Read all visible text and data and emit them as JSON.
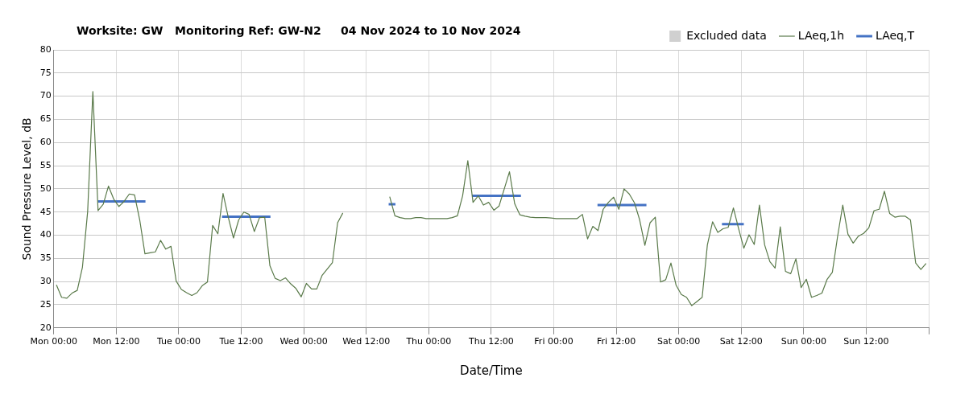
{
  "chart_data": {
    "type": "line",
    "title": "Worksite: GW   Monitoring Ref: GW-N2     04 Nov 2024 to 10 Nov 2024",
    "xlabel": "Date/Time",
    "ylabel": "Sound Pressure Level, dB",
    "xlim": [
      "2024-11-04T00:00",
      "2024-11-11T00:00"
    ],
    "xticks": [
      {
        "value": "2024-11-04T00:00",
        "label": "Mon 00:00"
      },
      {
        "value": "2024-11-04T12:00",
        "label": "Mon 12:00"
      },
      {
        "value": "2024-11-05T00:00",
        "label": "Tue 00:00"
      },
      {
        "value": "2024-11-05T12:00",
        "label": "Tue 12:00"
      },
      {
        "value": "2024-11-06T00:00",
        "label": "Wed 00:00"
      },
      {
        "value": "2024-11-06T12:00",
        "label": "Wed 12:00"
      },
      {
        "value": "2024-11-07T00:00",
        "label": "Thu 00:00"
      },
      {
        "value": "2024-11-07T12:00",
        "label": "Thu 12:00"
      },
      {
        "value": "2024-11-08T00:00",
        "label": "Fri 00:00"
      },
      {
        "value": "2024-11-08T12:00",
        "label": "Fri 12:00"
      },
      {
        "value": "2024-11-09T00:00",
        "label": "Sat 00:00"
      },
      {
        "value": "2024-11-09T12:00",
        "label": "Sat 12:00"
      },
      {
        "value": "2024-11-10T00:00",
        "label": "Sun 00:00"
      },
      {
        "value": "2024-11-10T12:00",
        "label": "Sun 12:00"
      },
      {
        "value": "2024-11-11T00:00",
        "label": null
      }
    ],
    "ylim": [
      20,
      80
    ],
    "yticks": [
      20,
      25,
      30,
      35,
      40,
      45,
      50,
      55,
      60,
      65,
      70,
      75,
      80
    ],
    "grid": true,
    "legend": "top right",
    "marker": "none",
    "line_style": "solid",
    "series": [
      {
        "name": "Excluded data",
        "type": "area",
        "color": "#d0d0d0"
      },
      {
        "name": "LAeq,1h",
        "color": "#5a7a4a",
        "x": [
          "2024-11-04T00:30",
          "2024-11-04T01:30",
          "2024-11-04T02:30",
          "2024-11-04T03:30",
          "2024-11-04T04:30",
          "2024-11-04T05:30",
          "2024-11-04T06:30",
          "2024-11-04T07:30",
          "2024-11-04T08:30",
          "2024-11-04T09:30",
          "2024-11-04T10:30",
          "2024-11-04T11:30",
          "2024-11-04T12:30",
          "2024-11-04T13:30",
          "2024-11-04T14:30",
          "2024-11-04T15:30",
          "2024-11-04T16:30",
          "2024-11-04T17:30",
          "2024-11-04T18:30",
          "2024-11-04T19:30",
          "2024-11-04T20:30",
          "2024-11-04T21:30",
          "2024-11-04T22:30",
          "2024-11-04T23:30",
          "2024-11-05T00:30",
          "2024-11-05T01:30",
          "2024-11-05T02:30",
          "2024-11-05T03:30",
          "2024-11-05T04:30",
          "2024-11-05T05:30",
          "2024-11-05T06:30",
          "2024-11-05T07:30",
          "2024-11-05T08:30",
          "2024-11-05T09:30",
          "2024-11-05T10:30",
          "2024-11-05T11:30",
          "2024-11-05T12:30",
          "2024-11-05T13:30",
          "2024-11-05T14:30",
          "2024-11-05T15:30",
          "2024-11-05T16:30",
          "2024-11-05T17:30",
          "2024-11-05T18:30",
          "2024-11-05T19:30",
          "2024-11-05T20:30",
          "2024-11-05T21:30",
          "2024-11-05T22:30",
          "2024-11-05T23:30",
          "2024-11-06T00:30",
          "2024-11-06T01:30",
          "2024-11-06T02:30",
          "2024-11-06T03:30",
          "2024-11-06T04:30",
          "2024-11-06T05:30",
          "2024-11-06T06:30",
          "2024-11-06T07:30",
          "2024-11-06T08:30",
          "2024-11-06T09:30",
          "2024-11-06T10:30",
          "2024-11-06T11:30",
          "2024-11-06T12:30",
          "2024-11-06T13:30",
          "2024-11-06T14:30",
          "2024-11-06T15:30",
          "2024-11-06T16:30",
          "2024-11-06T17:30",
          "2024-11-06T18:30",
          "2024-11-06T19:30",
          "2024-11-06T20:30",
          "2024-11-06T21:30",
          "2024-11-06T22:30",
          "2024-11-06T23:30",
          "2024-11-07T00:30",
          "2024-11-07T01:30",
          "2024-11-07T02:30",
          "2024-11-07T03:30",
          "2024-11-07T04:30",
          "2024-11-07T05:30",
          "2024-11-07T06:30",
          "2024-11-07T07:30",
          "2024-11-07T08:30",
          "2024-11-07T09:30",
          "2024-11-07T10:30",
          "2024-11-07T11:30",
          "2024-11-07T12:30",
          "2024-11-07T13:30",
          "2024-11-07T14:30",
          "2024-11-07T15:30",
          "2024-11-07T16:30",
          "2024-11-07T17:30",
          "2024-11-07T18:30",
          "2024-11-07T19:30",
          "2024-11-07T20:30",
          "2024-11-07T21:30",
          "2024-11-07T22:30",
          "2024-11-07T23:30",
          "2024-11-08T00:30",
          "2024-11-08T01:30",
          "2024-11-08T02:30",
          "2024-11-08T03:30",
          "2024-11-08T04:30",
          "2024-11-08T05:30",
          "2024-11-08T06:30",
          "2024-11-08T07:30",
          "2024-11-08T08:30",
          "2024-11-08T09:30",
          "2024-11-08T10:30",
          "2024-11-08T11:30",
          "2024-11-08T12:30",
          "2024-11-08T13:30",
          "2024-11-08T14:30",
          "2024-11-08T15:30",
          "2024-11-08T16:30",
          "2024-11-08T17:30",
          "2024-11-08T18:30",
          "2024-11-08T19:30",
          "2024-11-08T20:30",
          "2024-11-08T21:30",
          "2024-11-08T22:30",
          "2024-11-08T23:30",
          "2024-11-09T00:30",
          "2024-11-09T01:30",
          "2024-11-09T02:30",
          "2024-11-09T03:30",
          "2024-11-09T04:30",
          "2024-11-09T05:30",
          "2024-11-09T06:30",
          "2024-11-09T07:30",
          "2024-11-09T08:30",
          "2024-11-09T09:30",
          "2024-11-09T10:30",
          "2024-11-09T11:30",
          "2024-11-09T12:30",
          "2024-11-09T13:30",
          "2024-11-09T14:30",
          "2024-11-09T15:30",
          "2024-11-09T16:30",
          "2024-11-09T17:30",
          "2024-11-09T18:30",
          "2024-11-09T19:30",
          "2024-11-09T20:30",
          "2024-11-09T21:30",
          "2024-11-09T22:30",
          "2024-11-09T23:30",
          "2024-11-10T00:30",
          "2024-11-10T01:30",
          "2024-11-10T02:30",
          "2024-11-10T03:30",
          "2024-11-10T04:30",
          "2024-11-10T05:30",
          "2024-11-10T06:30",
          "2024-11-10T07:30",
          "2024-11-10T08:30",
          "2024-11-10T09:30",
          "2024-11-10T10:30",
          "2024-11-10T11:30",
          "2024-11-10T12:30",
          "2024-11-10T13:30",
          "2024-11-10T14:30",
          "2024-11-10T15:30",
          "2024-11-10T16:30",
          "2024-11-10T17:30",
          "2024-11-10T18:30",
          "2024-11-10T19:30",
          "2024-11-10T20:30",
          "2024-11-10T21:30",
          "2024-11-10T22:30",
          "2024-11-10T23:30"
        ],
        "values": [
          29.3,
          26.6,
          26.4,
          27.5,
          28.1,
          33.1,
          45.1,
          71.0,
          45.3,
          46.7,
          50.6,
          47.8,
          46.2,
          47.3,
          48.9,
          48.7,
          43.3,
          36.0,
          36.2,
          36.4,
          38.9,
          37.0,
          37.6,
          30.1,
          28.3,
          27.6,
          27.0,
          27.6,
          29.1,
          29.9,
          42.1,
          40.3,
          49.0,
          43.9,
          39.4,
          43.3,
          45.0,
          44.5,
          40.8,
          43.8,
          43.9,
          33.4,
          30.7,
          30.2,
          30.8,
          29.5,
          28.5,
          26.7,
          29.6,
          28.4,
          28.4,
          31.3,
          32.7,
          34.1,
          42.7,
          44.8,
          null,
          null,
          null,
          null,
          null,
          null,
          null,
          null,
          48.3,
          44.2,
          43.8,
          43.6,
          43.6,
          43.8,
          43.8,
          43.6,
          43.6,
          43.6,
          43.6,
          43.6,
          43.8,
          44.2,
          48.5,
          56.1,
          47.1,
          48.5,
          46.5,
          47.1,
          45.4,
          46.3,
          50.0,
          53.7,
          46.8,
          44.4,
          44.1,
          43.9,
          43.8,
          43.8,
          43.8,
          43.7,
          43.6,
          43.6,
          43.6,
          43.6,
          43.6,
          44.5,
          39.2,
          41.9,
          41.0,
          45.6,
          47.1,
          48.2,
          45.6,
          50.0,
          48.9,
          47.0,
          43.3,
          37.8,
          42.7,
          43.9,
          29.9,
          30.4,
          34.0,
          29.2,
          27.2,
          26.6,
          24.8,
          25.7,
          26.6,
          37.9,
          42.9,
          40.6,
          41.4,
          41.7,
          45.9,
          41.4,
          37.2,
          40.1,
          38.0,
          46.5,
          37.9,
          34.3,
          32.9,
          41.8,
          32.2,
          31.7,
          34.9,
          28.7,
          30.5,
          26.6,
          27.0,
          27.5,
          30.5,
          32.0,
          39.7,
          46.5,
          40.2,
          38.3,
          39.8,
          40.4,
          41.6,
          45.3,
          45.6,
          49.5,
          44.7,
          43.9,
          44.1,
          44.1,
          43.3,
          34.0,
          32.6,
          33.9
        ]
      },
      {
        "name": "LAeq,T",
        "color": "#4472c4",
        "x": [
          "2024-11-04T08:24",
          "2024-11-04T17:36",
          "2024-11-05T01:00",
          "2024-11-05T08:18",
          "2024-11-05T17:36",
          "2024-11-06T02:00",
          "2024-11-06T16:18",
          "2024-11-06T17:36",
          "2024-11-06T22:00",
          "2024-11-07T08:18",
          "2024-11-07T17:42",
          "2024-11-07T23:00",
          "2024-11-08T08:24",
          "2024-11-08T17:48",
          "2024-11-09T00:00",
          "2024-11-09T08:18",
          "2024-11-09T12:30"
        ],
        "values": [
          47.3,
          47.3,
          null,
          44.0,
          44.0,
          null,
          46.7,
          46.7,
          null,
          48.5,
          48.5,
          null,
          46.5,
          46.5,
          null,
          42.4,
          42.4
        ]
      }
    ]
  }
}
